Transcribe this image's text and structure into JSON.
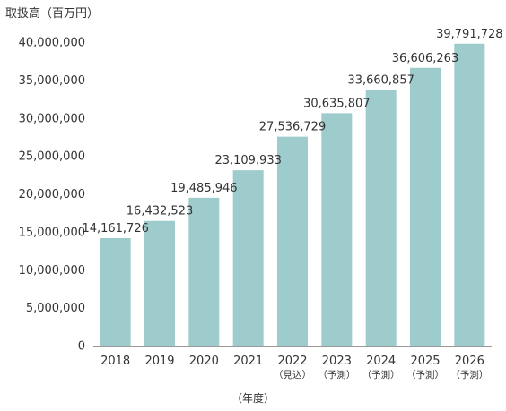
{
  "chart_data": {
    "type": "bar",
    "ylabel": "取扱高（百万円）",
    "xlabel": "（年度）",
    "categories": [
      {
        "year": "2018",
        "note": ""
      },
      {
        "year": "2019",
        "note": ""
      },
      {
        "year": "2020",
        "note": ""
      },
      {
        "year": "2021",
        "note": ""
      },
      {
        "year": "2022",
        "note": "（見込）"
      },
      {
        "year": "2023",
        "note": "（予測）"
      },
      {
        "year": "2024",
        "note": "（予測）"
      },
      {
        "year": "2025",
        "note": "（予測）"
      },
      {
        "year": "2026",
        "note": "（予測）"
      }
    ],
    "values": [
      14161726,
      16432523,
      19485946,
      23109933,
      27536729,
      30635807,
      33660857,
      36606263,
      39791728
    ],
    "data_labels": [
      "14,161,726",
      "16,432,523",
      "19,485,946",
      "23,109,933",
      "27,536,729",
      "30,635,807",
      "33,660,857",
      "36,606,263",
      "39,791,728"
    ],
    "ylim": [
      0,
      40000000
    ],
    "yticks": [
      0,
      5000000,
      10000000,
      15000000,
      20000000,
      25000000,
      30000000,
      35000000,
      40000000
    ],
    "ytick_labels": [
      "0",
      "5,000,000",
      "10,000,000",
      "15,000,000",
      "20,000,000",
      "25,000,000",
      "30,000,000",
      "35,000,000",
      "40,000,000"
    ],
    "grid": false,
    "bar_color": "#9ecbcb",
    "axis_color": "#999999",
    "text_color": "#333333"
  }
}
